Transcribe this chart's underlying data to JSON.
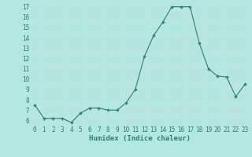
{
  "x": [
    0,
    1,
    2,
    3,
    4,
    5,
    6,
    7,
    8,
    9,
    10,
    11,
    12,
    13,
    14,
    15,
    16,
    17,
    18,
    19,
    20,
    21,
    22,
    23
  ],
  "y": [
    7.5,
    6.2,
    6.2,
    6.2,
    5.8,
    6.7,
    7.2,
    7.2,
    7.0,
    7.0,
    7.7,
    9.0,
    12.2,
    14.2,
    15.5,
    17.0,
    17.0,
    17.0,
    13.5,
    11.0,
    10.3,
    10.2,
    8.3,
    9.5
  ],
  "line_color": "#2e7d6e",
  "marker_color": "#2e7d6e",
  "bg_color": "#b2e8e0",
  "grid_color": "#c8dbd8",
  "xlabel": "Humidex (Indice chaleur)",
  "ylim": [
    5.5,
    17.5
  ],
  "xlim": [
    -0.5,
    23.5
  ],
  "yticks": [
    6,
    7,
    8,
    9,
    10,
    11,
    12,
    13,
    14,
    15,
    16,
    17
  ],
  "xticks": [
    0,
    1,
    2,
    3,
    4,
    5,
    6,
    7,
    8,
    9,
    10,
    11,
    12,
    13,
    14,
    15,
    16,
    17,
    18,
    19,
    20,
    21,
    22,
    23
  ],
  "label_fontsize": 6.5,
  "tick_fontsize": 5.5
}
